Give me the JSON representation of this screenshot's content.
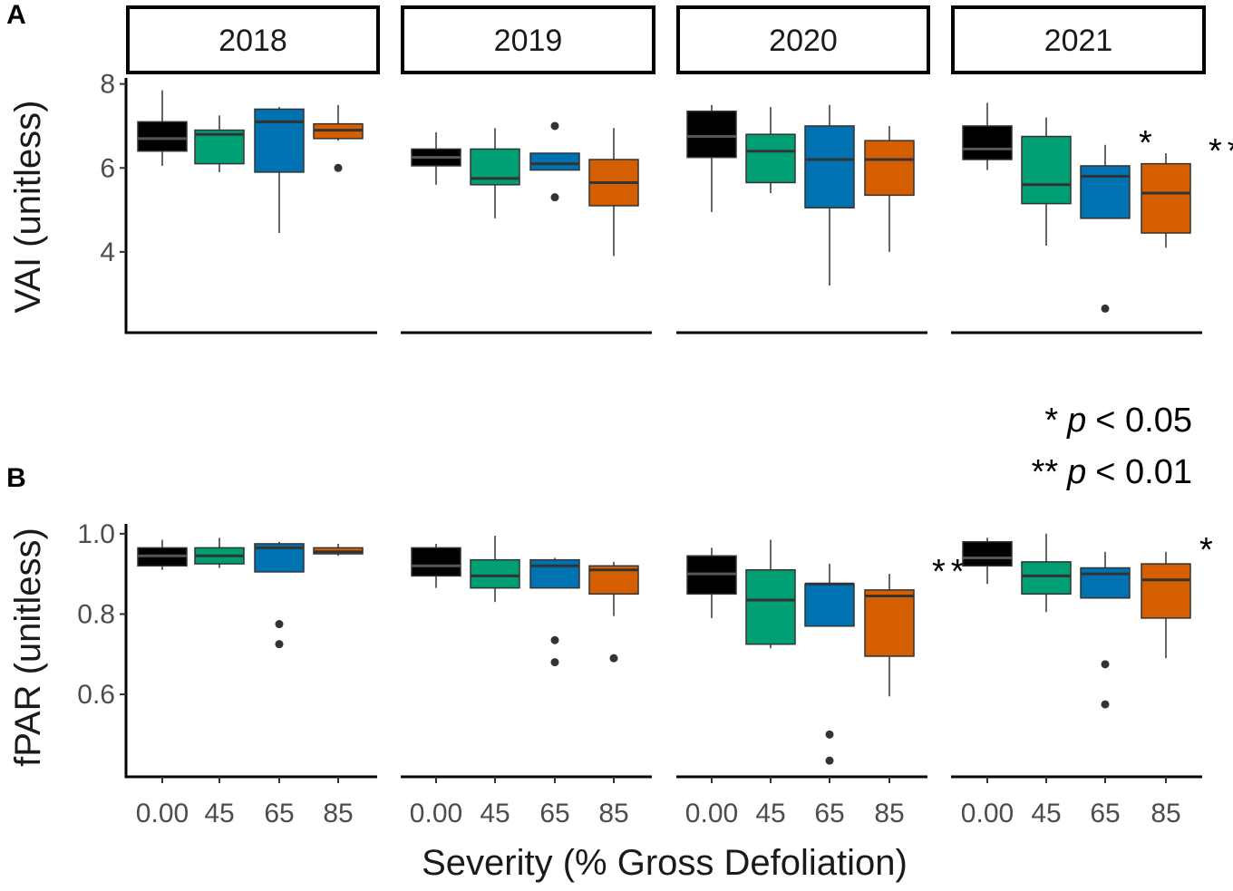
{
  "chart_data": [
    {
      "panel_label": "A",
      "type": "box",
      "ylabel": "VAI (unitless)",
      "xlabel": "",
      "ylim": [
        2.4,
        8.1
      ],
      "yticks": [
        4,
        6,
        8
      ],
      "ytick_labels": [
        "4",
        "6",
        "8"
      ],
      "facets": [
        {
          "label": "2018",
          "boxes": [
            {
              "category": "0.00",
              "min": 6.05,
              "q1": 6.4,
              "median": 6.7,
              "q3": 7.1,
              "max": 7.85,
              "outliers": [],
              "sig": ""
            },
            {
              "category": "45",
              "min": 5.9,
              "q1": 6.1,
              "median": 6.8,
              "q3": 6.9,
              "max": 7.25,
              "outliers": [],
              "sig": ""
            },
            {
              "category": "65",
              "min": 4.45,
              "q1": 5.9,
              "median": 7.1,
              "q3": 7.4,
              "max": 7.45,
              "outliers": [],
              "sig": ""
            },
            {
              "category": "85",
              "min": 6.65,
              "q1": 6.7,
              "median": 6.9,
              "q3": 7.05,
              "max": 7.5,
              "outliers": [
                6.0
              ],
              "sig": ""
            }
          ]
        },
        {
          "label": "2019",
          "boxes": [
            {
              "category": "0.00",
              "min": 5.6,
              "q1": 6.05,
              "median": 6.25,
              "q3": 6.45,
              "max": 6.85,
              "outliers": [],
              "sig": ""
            },
            {
              "category": "45",
              "min": 4.8,
              "q1": 5.6,
              "median": 5.75,
              "q3": 6.45,
              "max": 6.95,
              "outliers": [],
              "sig": ""
            },
            {
              "category": "65",
              "min": 5.95,
              "q1": 5.95,
              "median": 6.1,
              "q3": 6.35,
              "max": 6.35,
              "outliers": [
                7.0,
                5.3
              ],
              "sig": ""
            },
            {
              "category": "85",
              "min": 3.9,
              "q1": 5.1,
              "median": 5.65,
              "q3": 6.2,
              "max": 6.95,
              "outliers": [],
              "sig": ""
            }
          ]
        },
        {
          "label": "2020",
          "boxes": [
            {
              "category": "0.00",
              "min": 4.95,
              "q1": 6.25,
              "median": 6.75,
              "q3": 7.35,
              "max": 7.5,
              "outliers": [],
              "sig": ""
            },
            {
              "category": "45",
              "min": 5.4,
              "q1": 5.65,
              "median": 6.4,
              "q3": 6.8,
              "max": 7.45,
              "outliers": [],
              "sig": ""
            },
            {
              "category": "65",
              "min": 3.2,
              "q1": 5.05,
              "median": 6.2,
              "q3": 7.0,
              "max": 7.5,
              "outliers": [],
              "sig": ""
            },
            {
              "category": "85",
              "min": 4.0,
              "q1": 5.35,
              "median": 6.2,
              "q3": 6.65,
              "max": 7.0,
              "outliers": [],
              "sig": ""
            }
          ]
        },
        {
          "label": "2021",
          "boxes": [
            {
              "category": "0.00",
              "min": 5.95,
              "q1": 6.2,
              "median": 6.45,
              "q3": 7.0,
              "max": 7.55,
              "outliers": [],
              "sig": ""
            },
            {
              "category": "45",
              "min": 4.15,
              "q1": 5.15,
              "median": 5.6,
              "q3": 6.75,
              "max": 7.2,
              "outliers": [],
              "sig": ""
            },
            {
              "category": "65",
              "min": 4.8,
              "q1": 4.8,
              "median": 5.8,
              "q3": 6.05,
              "max": 6.55,
              "outliers": [
                2.65
              ],
              "sig": "*"
            },
            {
              "category": "85",
              "min": 4.1,
              "q1": 4.45,
              "median": 5.4,
              "q3": 6.1,
              "max": 6.35,
              "outliers": [],
              "sig": "**"
            }
          ]
        }
      ]
    },
    {
      "panel_label": "B",
      "type": "box",
      "ylabel": "fPAR (unitless)",
      "xlabel": "Severity (% Gross Defoliation)",
      "ylim": [
        0.415,
        1.02
      ],
      "yticks": [
        0.6,
        0.8,
        1.0
      ],
      "ytick_labels": [
        "0.6",
        "0.8",
        "1.0"
      ],
      "facets": [
        {
          "label": "2018",
          "boxes": [
            {
              "category": "0.00",
              "min": 0.91,
              "q1": 0.92,
              "median": 0.945,
              "q3": 0.965,
              "max": 0.985,
              "outliers": [],
              "sig": ""
            },
            {
              "category": "45",
              "min": 0.915,
              "q1": 0.925,
              "median": 0.945,
              "q3": 0.965,
              "max": 0.99,
              "outliers": [],
              "sig": ""
            },
            {
              "category": "65",
              "min": 0.905,
              "q1": 0.905,
              "median": 0.965,
              "q3": 0.975,
              "max": 0.98,
              "outliers": [
                0.775,
                0.725
              ],
              "sig": ""
            },
            {
              "category": "85",
              "min": 0.945,
              "q1": 0.95,
              "median": 0.955,
              "q3": 0.965,
              "max": 0.975,
              "outliers": [],
              "sig": ""
            }
          ]
        },
        {
          "label": "2019",
          "boxes": [
            {
              "category": "0.00",
              "min": 0.865,
              "q1": 0.895,
              "median": 0.92,
              "q3": 0.965,
              "max": 0.975,
              "outliers": [],
              "sig": ""
            },
            {
              "category": "45",
              "min": 0.83,
              "q1": 0.865,
              "median": 0.895,
              "q3": 0.935,
              "max": 0.995,
              "outliers": [],
              "sig": ""
            },
            {
              "category": "65",
              "min": 0.865,
              "q1": 0.865,
              "median": 0.92,
              "q3": 0.935,
              "max": 0.94,
              "outliers": [
                0.735,
                0.68
              ],
              "sig": ""
            },
            {
              "category": "85",
              "min": 0.795,
              "q1": 0.85,
              "median": 0.91,
              "q3": 0.92,
              "max": 0.93,
              "outliers": [
                0.69
              ],
              "sig": ""
            }
          ]
        },
        {
          "label": "2020",
          "boxes": [
            {
              "category": "0.00",
              "min": 0.79,
              "q1": 0.85,
              "median": 0.9,
              "q3": 0.945,
              "max": 0.965,
              "outliers": [],
              "sig": ""
            },
            {
              "category": "45",
              "min": 0.715,
              "q1": 0.725,
              "median": 0.835,
              "q3": 0.91,
              "max": 0.985,
              "outliers": [],
              "sig": ""
            },
            {
              "category": "65",
              "min": 0.77,
              "q1": 0.77,
              "median": 0.875,
              "q3": 0.875,
              "max": 0.925,
              "outliers": [
                0.5,
                0.435
              ],
              "sig": ""
            },
            {
              "category": "85",
              "min": 0.595,
              "q1": 0.695,
              "median": 0.845,
              "q3": 0.86,
              "max": 0.9,
              "outliers": [],
              "sig": "**"
            }
          ]
        },
        {
          "label": "2021",
          "boxes": [
            {
              "category": "0.00",
              "min": 0.875,
              "q1": 0.92,
              "median": 0.94,
              "q3": 0.98,
              "max": 0.99,
              "outliers": [],
              "sig": ""
            },
            {
              "category": "45",
              "min": 0.805,
              "q1": 0.85,
              "median": 0.895,
              "q3": 0.93,
              "max": 1.0,
              "outliers": [],
              "sig": ""
            },
            {
              "category": "65",
              "min": 0.84,
              "q1": 0.84,
              "median": 0.9,
              "q3": 0.915,
              "max": 0.955,
              "outliers": [
                0.675,
                0.575
              ],
              "sig": ""
            },
            {
              "category": "85",
              "min": 0.69,
              "q1": 0.79,
              "median": 0.885,
              "q3": 0.925,
              "max": 0.955,
              "outliers": [],
              "sig": "*"
            }
          ]
        }
      ]
    }
  ],
  "x_categories": [
    "0.00",
    "45",
    "65",
    "85"
  ],
  "category_colors": [
    "#000000",
    "#009E73",
    "#0072B2",
    "#D55E00"
  ],
  "legend": {
    "line1_stars": "*",
    "line1_p": "p",
    "line1_rest": "< 0.05",
    "line2_stars": "**",
    "line2_p": "p",
    "line2_rest": "< 0.01"
  }
}
